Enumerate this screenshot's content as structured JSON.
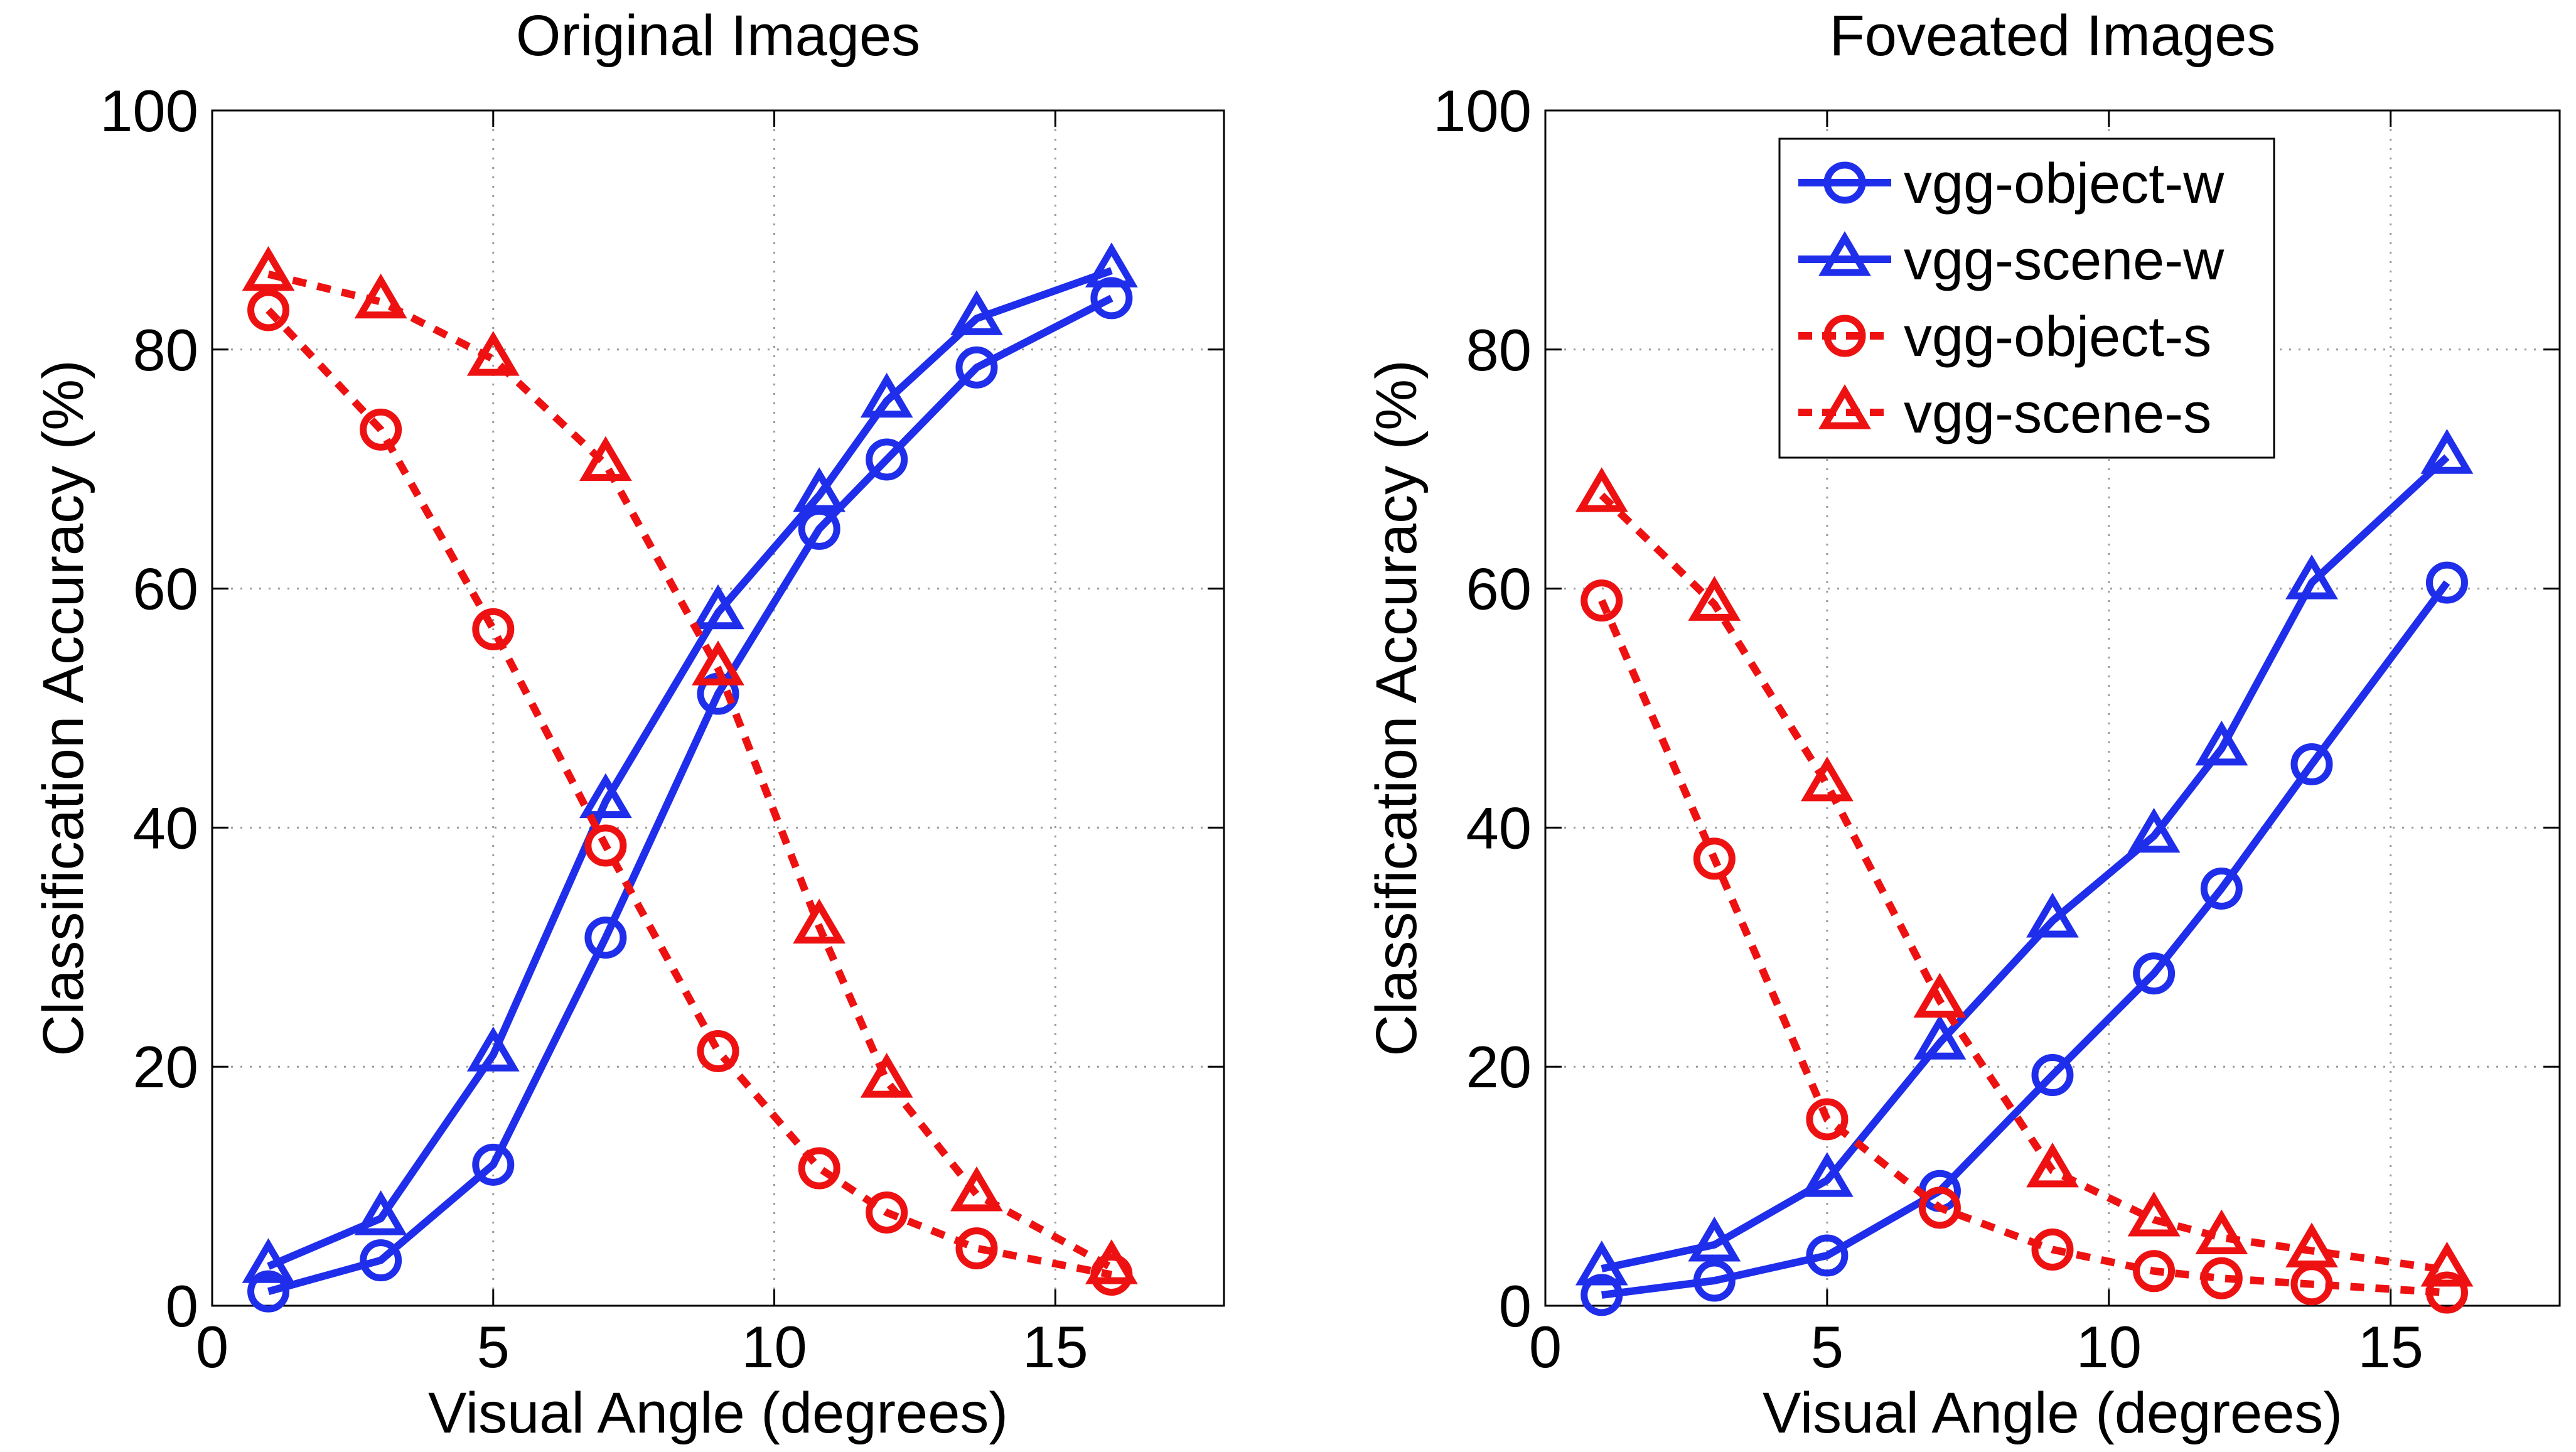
{
  "colors": {
    "blue": "#1f2eea",
    "red": "#ee1111",
    "axis": "#000000",
    "grid": "#9a9a9a"
  },
  "chart_data": [
    {
      "type": "line",
      "title": "Original Images",
      "xlabel": "Visual Angle (degrees)",
      "ylabel": "Classification Accuracy (%)",
      "xlim": [
        0,
        18
      ],
      "ylim": [
        0,
        100
      ],
      "xticks": [
        0,
        5,
        10,
        15
      ],
      "yticks": [
        0,
        20,
        40,
        60,
        80,
        100
      ],
      "grid": true,
      "legend": null,
      "series": [
        {
          "name": "vgg-object-w",
          "color": "#1f2eea",
          "style": "solid",
          "marker": "circle",
          "x": [
            1,
            3,
            5,
            7,
            9,
            10.8,
            12,
            13.6,
            16
          ],
          "y": [
            1.2,
            3.8,
            11.8,
            30.8,
            51.2,
            65,
            70.8,
            78.5,
            84.3
          ]
        },
        {
          "name": "vgg-scene-w",
          "color": "#1f2eea",
          "style": "solid",
          "marker": "triangle",
          "x": [
            1,
            3,
            5,
            7,
            9,
            10.8,
            12,
            13.6,
            16
          ],
          "y": [
            3.3,
            7.3,
            21,
            42.2,
            58,
            67.8,
            75.7,
            82.6,
            86.6
          ]
        },
        {
          "name": "vgg-object-s",
          "color": "#ee1111",
          "style": "dashed",
          "marker": "circle",
          "x": [
            1,
            3,
            5,
            7,
            9,
            10.8,
            12,
            13.6,
            16
          ],
          "y": [
            83.3,
            73.3,
            56.6,
            38.5,
            21.3,
            11.5,
            7.8,
            4.8,
            2.6
          ]
        },
        {
          "name": "vgg-scene-s",
          "color": "#ee1111",
          "style": "dashed",
          "marker": "triangle",
          "x": [
            1,
            3,
            5,
            7,
            9,
            10.8,
            12,
            13.6,
            16
          ],
          "y": [
            86.3,
            84,
            79.2,
            70.4,
            53.3,
            31.7,
            18.8,
            9.3,
            3.2
          ]
        }
      ]
    },
    {
      "type": "line",
      "title": "Foveated Images",
      "xlabel": "Visual Angle (degrees)",
      "ylabel": "Classification Accuracy (%)",
      "xlim": [
        0,
        18
      ],
      "ylim": [
        0,
        100
      ],
      "xticks": [
        0,
        5,
        10,
        15
      ],
      "yticks": [
        0,
        20,
        40,
        60,
        80,
        100
      ],
      "grid": true,
      "legend": "top-right",
      "series": [
        {
          "name": "vgg-object-w",
          "color": "#1f2eea",
          "style": "solid",
          "marker": "circle",
          "x": [
            1,
            3,
            5,
            7,
            9,
            10.8,
            12,
            13.6,
            16
          ],
          "y": [
            0.9,
            2.1,
            4.2,
            9.6,
            19.3,
            27.8,
            34.9,
            45.3,
            60.5
          ]
        },
        {
          "name": "vgg-scene-w",
          "color": "#1f2eea",
          "style": "solid",
          "marker": "triangle",
          "x": [
            1,
            3,
            5,
            7,
            9,
            10.8,
            12,
            13.6,
            16
          ],
          "y": [
            3.1,
            5.1,
            10.5,
            22,
            32.2,
            39.3,
            46.6,
            60.5,
            71
          ]
        },
        {
          "name": "vgg-object-s",
          "color": "#ee1111",
          "style": "dashed",
          "marker": "circle",
          "x": [
            1,
            3,
            5,
            7,
            9,
            10.8,
            12,
            13.6,
            16
          ],
          "y": [
            59,
            37.4,
            15.6,
            8.2,
            4.7,
            2.9,
            2.3,
            1.8,
            1.1
          ]
        },
        {
          "name": "vgg-scene-s",
          "color": "#ee1111",
          "style": "dashed",
          "marker": "triangle",
          "x": [
            1,
            3,
            5,
            7,
            9,
            10.8,
            12,
            13.6,
            16
          ],
          "y": [
            67.8,
            58.7,
            43.6,
            25.5,
            11.3,
            7.2,
            5.7,
            4.6,
            3
          ]
        }
      ]
    }
  ]
}
